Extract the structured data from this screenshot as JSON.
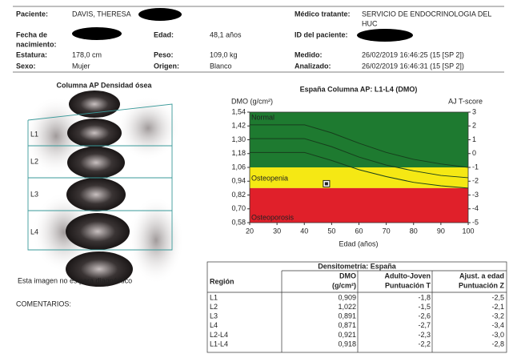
{
  "header": {
    "fields": [
      {
        "label": "Paciente:",
        "value": "DAVIS, THERESA"
      },
      {
        "label": "Médico tratante:",
        "value": [
          "SERVICIO DE ENDOCRINOLOGIA DEL",
          "HUC"
        ]
      },
      {
        "label": [
          "Fecha de",
          "nacimiento:"
        ]
      },
      {
        "label": "Edad:",
        "value": "48,1 años"
      },
      {
        "label": "ID del paciente:"
      },
      {
        "label": "Estatura:",
        "value": "178,0 cm"
      },
      {
        "label": "Peso:",
        "value": "109,0 kg"
      },
      {
        "label": "Medido:",
        "value": "26/02/2019  16:46:25 (15 [SP 2])"
      },
      {
        "label": "Sexo:",
        "value": "Mujer"
      },
      {
        "label": "Origen:",
        "value": "Blanco"
      },
      {
        "label": "Analizado:",
        "value": "26/02/2019  16:46:31 (15 [SP 2])"
      }
    ]
  },
  "image": {
    "title": "Columna AP Densidad ósea",
    "regions": [
      "L1",
      "L2",
      "L3",
      "L4"
    ],
    "caption": "Esta imagen no es para diagnóstico"
  },
  "comments": "COMENTARIOS:",
  "chart_data": {
    "type": "line",
    "title": "España Columna AP: L1-L4 (DMO)",
    "y_label": "DMO (g/cm²)",
    "y2_label": "AJ T-score",
    "x_label": "Edad (años)",
    "xlim": [
      20,
      100
    ],
    "xticks": [
      20,
      30,
      40,
      50,
      60,
      70,
      80,
      90,
      100
    ],
    "ylim": [
      0.58,
      1.54
    ],
    "yticks": [
      {
        "value": 0.58,
        "label": "0,58"
      },
      {
        "value": 0.7,
        "label": "0,70"
      },
      {
        "value": 0.82,
        "label": "0,82"
      },
      {
        "value": 0.94,
        "label": "0,94"
      },
      {
        "value": 1.06,
        "label": "1,06"
      },
      {
        "value": 1.18,
        "label": "1,18"
      },
      {
        "value": 1.3,
        "label": "1,30"
      },
      {
        "value": 1.42,
        "label": "1,42"
      },
      {
        "value": 1.54,
        "label": "1,54"
      }
    ],
    "y2lim": [
      -5,
      3
    ],
    "y2ticks": [
      -5,
      -4,
      -3,
      -2,
      -1,
      0,
      1,
      2,
      3
    ],
    "zones": [
      {
        "name": "Normal",
        "from": -1,
        "to": 3,
        "color": "#1e7a30"
      },
      {
        "name": "Osteopenia",
        "from": -2.5,
        "to": -1,
        "color": "#f5e814"
      },
      {
        "name": "Osteoporosis",
        "from": -5,
        "to": -2.5,
        "color": "#e0202a"
      }
    ],
    "series": [
      {
        "color": "#173d1c",
        "x": [
          20,
          40,
          50,
          60,
          70,
          80,
          90,
          100
        ],
        "values": [
          1.43,
          1.43,
          1.36,
          1.27,
          1.19,
          1.13,
          1.09,
          1.06
        ]
      },
      {
        "color": "#173d1c",
        "x": [
          20,
          40,
          50,
          60,
          70,
          80,
          90,
          100
        ],
        "values": [
          1.31,
          1.31,
          1.24,
          1.15,
          1.08,
          1.03,
          0.99,
          0.97
        ]
      },
      {
        "color": "#173d1c",
        "x": [
          20,
          40,
          50,
          60,
          70,
          80,
          90,
          100
        ],
        "values": [
          1.19,
          1.19,
          1.12,
          1.04,
          0.98,
          0.93,
          0.9,
          0.88
        ]
      }
    ],
    "patient": {
      "x": 48.1,
      "y": 0.918
    }
  },
  "table": {
    "title": "Densitometría: España",
    "columns": [
      [
        "Región"
      ],
      [
        "DMO",
        "(g/cm²)"
      ],
      [
        "Adulto-Joven",
        "Puntuación T"
      ],
      [
        "Ajust. a edad",
        "Puntuación Z"
      ]
    ],
    "rows": [
      [
        "L1",
        "0,909",
        "-1,8",
        "-2,5"
      ],
      [
        "L2",
        "1,022",
        "-1,5",
        "-2,1"
      ],
      [
        "L3",
        "0,891",
        "-2,6",
        "-3,2"
      ],
      [
        "L4",
        "0,871",
        "-2,7",
        "-3,4"
      ],
      [
        "L2-L4",
        "0,921",
        "-2,3",
        "-3,0"
      ],
      [
        "L1-L4",
        "0,918",
        "-2,2",
        "-2,8"
      ]
    ]
  }
}
